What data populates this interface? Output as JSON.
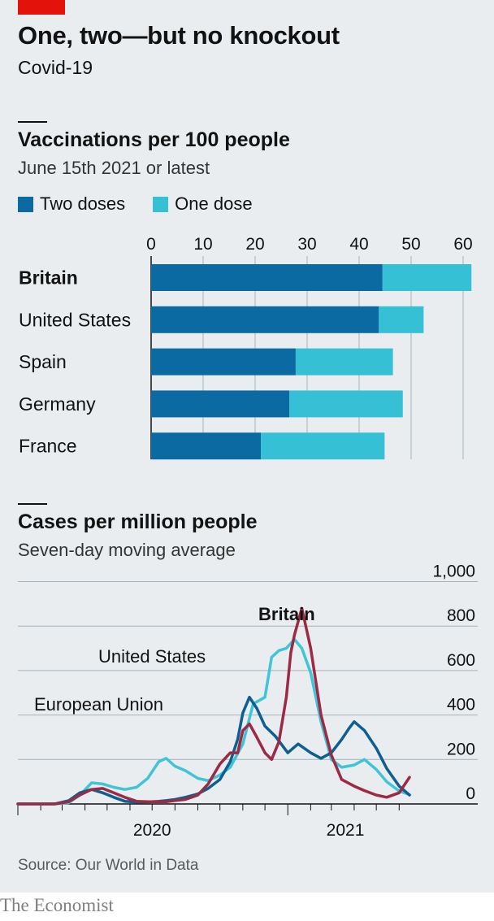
{
  "title": "One, two—but no knockout",
  "subtitle": "Covid-19",
  "source": "Source: Our World in Data",
  "brand": "The Economist",
  "colors": {
    "two_doses": "#0b6aa2",
    "one_dose": "#35c0d6",
    "united_states": "#40c4d6",
    "european_union": "#0e5f8f",
    "britain": "#9b2a45",
    "red_tag": "#e3120b"
  },
  "chart_data": [
    {
      "type": "bar",
      "stacked": true,
      "orientation": "horizontal",
      "title": "Vaccinations per 100 people",
      "subtitle": "June 15th 2021 or latest",
      "categories": [
        "Britain",
        "United States",
        "Spain",
        "Germany",
        "France"
      ],
      "highlight": "Britain",
      "series": [
        {
          "name": "Two doses",
          "values": [
            44.5,
            43.8,
            27.8,
            26.6,
            21.1
          ]
        },
        {
          "name": "One dose",
          "values": [
            17.1,
            8.6,
            18.7,
            21.8,
            23.8
          ]
        }
      ],
      "xlim": [
        0,
        60
      ],
      "xticks": [
        "0",
        "10",
        "20",
        "30",
        "40",
        "50",
        "60"
      ],
      "legend_position": "top-left",
      "grid": true
    },
    {
      "type": "line",
      "title": "Cases per million people",
      "subtitle": "Seven-day moving average",
      "ylim": [
        0,
        1000
      ],
      "yticks": [
        "0",
        "200",
        "400",
        "600",
        "800",
        "1,000"
      ],
      "xlim": [
        "2020-01-01",
        "2021-06-15"
      ],
      "xticks": [
        "2020",
        "2021"
      ],
      "grid": true,
      "series": [
        {
          "name": "United States",
          "x": [
            "2020-01-01",
            "2020-02-01",
            "2020-02-20",
            "2020-03-10",
            "2020-03-25",
            "2020-04-10",
            "2020-04-25",
            "2020-05-10",
            "2020-05-25",
            "2020-06-10",
            "2020-06-25",
            "2020-07-10",
            "2020-07-20",
            "2020-08-01",
            "2020-08-15",
            "2020-09-01",
            "2020-09-15",
            "2020-10-01",
            "2020-10-15",
            "2020-11-01",
            "2020-11-15",
            "2020-12-01",
            "2020-12-10",
            "2020-12-20",
            "2020-12-30",
            "2021-01-10",
            "2021-01-20",
            "2021-02-01",
            "2021-02-15",
            "2021-03-01",
            "2021-03-15",
            "2021-04-01",
            "2021-04-15",
            "2021-05-01",
            "2021-05-15",
            "2021-06-01",
            "2021-06-15"
          ],
          "y": [
            0,
            0,
            0,
            5,
            40,
            95,
            90,
            75,
            65,
            75,
            115,
            190,
            205,
            170,
            150,
            115,
            105,
            130,
            165,
            270,
            450,
            480,
            660,
            690,
            700,
            740,
            700,
            590,
            370,
            200,
            165,
            175,
            200,
            155,
            100,
            58,
            42
          ]
        },
        {
          "name": "European Union",
          "x": [
            "2020-01-01",
            "2020-02-01",
            "2020-02-20",
            "2020-03-10",
            "2020-03-25",
            "2020-04-10",
            "2020-04-25",
            "2020-05-10",
            "2020-05-25",
            "2020-06-10",
            "2020-06-25",
            "2020-07-10",
            "2020-07-20",
            "2020-08-01",
            "2020-08-15",
            "2020-09-01",
            "2020-09-15",
            "2020-10-01",
            "2020-10-15",
            "2020-10-25",
            "2020-11-01",
            "2020-11-10",
            "2020-11-20",
            "2020-12-01",
            "2020-12-15",
            "2021-01-01",
            "2021-01-15",
            "2021-02-01",
            "2021-02-15",
            "2021-03-01",
            "2021-03-15",
            "2021-03-25",
            "2021-04-01",
            "2021-04-15",
            "2021-05-01",
            "2021-05-15",
            "2021-06-01",
            "2021-06-15"
          ],
          "y": [
            0,
            0,
            0,
            15,
            50,
            65,
            50,
            30,
            12,
            8,
            9,
            12,
            15,
            20,
            30,
            45,
            70,
            110,
            190,
            290,
            410,
            480,
            430,
            350,
            305,
            230,
            270,
            230,
            205,
            230,
            290,
            340,
            370,
            330,
            250,
            160,
            80,
            40
          ]
        },
        {
          "name": "Britain",
          "x": [
            "2020-01-01",
            "2020-02-01",
            "2020-02-20",
            "2020-03-10",
            "2020-03-25",
            "2020-04-10",
            "2020-04-25",
            "2020-05-10",
            "2020-05-25",
            "2020-06-10",
            "2020-06-25",
            "2020-07-10",
            "2020-07-20",
            "2020-08-01",
            "2020-08-15",
            "2020-09-01",
            "2020-09-15",
            "2020-10-01",
            "2020-10-15",
            "2020-10-25",
            "2020-11-01",
            "2020-11-10",
            "2020-11-20",
            "2020-12-01",
            "2020-12-10",
            "2020-12-20",
            "2020-12-30",
            "2021-01-05",
            "2021-01-10",
            "2021-01-20",
            "2021-02-01",
            "2021-02-15",
            "2021-03-01",
            "2021-03-15",
            "2021-04-01",
            "2021-04-15",
            "2021-05-01",
            "2021-05-15",
            "2021-06-01",
            "2021-06-15"
          ],
          "y": [
            0,
            0,
            0,
            10,
            40,
            65,
            70,
            50,
            30,
            12,
            10,
            10,
            10,
            15,
            20,
            40,
            90,
            180,
            230,
            230,
            330,
            360,
            300,
            230,
            200,
            280,
            480,
            680,
            760,
            880,
            700,
            400,
            220,
            110,
            80,
            60,
            40,
            30,
            50,
            120
          ]
        }
      ],
      "annotations": [
        "Britain",
        "United States",
        "European Union"
      ]
    }
  ]
}
